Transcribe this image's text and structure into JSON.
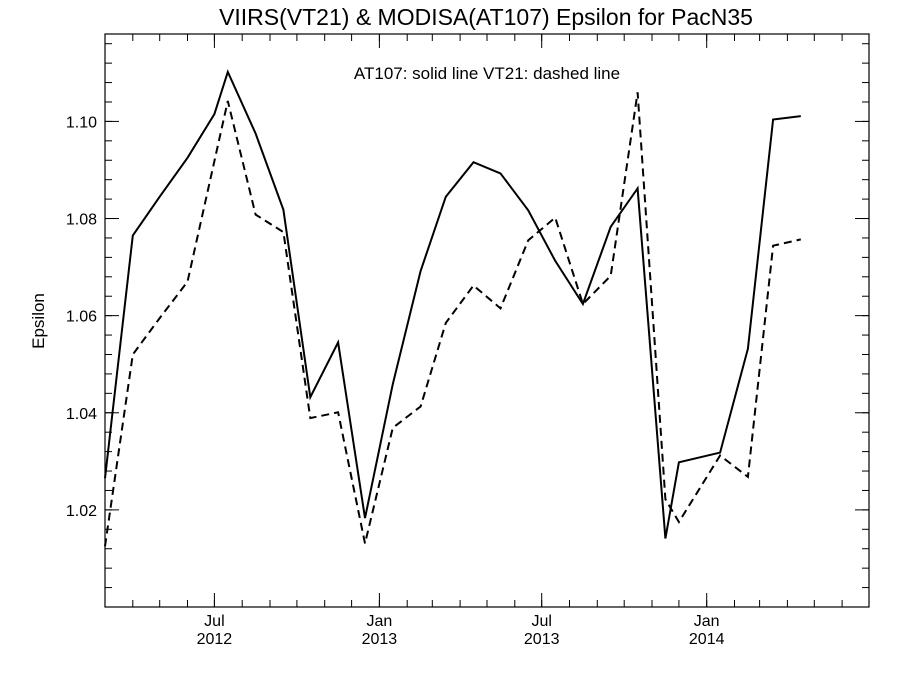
{
  "chart_data": {
    "type": "line",
    "title": "VIIRS(VT21) & MODISA(AT107)  Epsilon for PacN35",
    "annotation": "AT107: solid line   VT21: dashed line",
    "ylabel": "Epsilon",
    "xlabel": "",
    "xlim": [
      "2012-03-01",
      "2014-07-01"
    ],
    "ylim": [
      1.0,
      1.118
    ],
    "y_ticks": [
      "1.02",
      "1.04",
      "1.06",
      "1.08",
      "1.10"
    ],
    "y_tick_values": [
      1.02,
      1.04,
      1.06,
      1.08,
      1.1
    ],
    "y_minor_step": 0.004,
    "x_ticks": [
      {
        "date": "2012-07-01",
        "month": "Jul",
        "year": "2012"
      },
      {
        "date": "2013-01-01",
        "month": "Jan",
        "year": "2013"
      },
      {
        "date": "2013-07-01",
        "month": "Jul",
        "year": "2013"
      },
      {
        "date": "2014-01-01",
        "month": "Jan",
        "year": "2014"
      }
    ],
    "grid": false,
    "series": [
      {
        "name": "AT107",
        "style": "solid",
        "color": "#000000",
        "points": [
          {
            "x": "2012-03-01",
            "y": 1.0265
          },
          {
            "x": "2012-04-01",
            "y": 1.0765
          },
          {
            "x": "2012-05-01",
            "y": 1.0845
          },
          {
            "x": "2012-06-01",
            "y": 1.0925
          },
          {
            "x": "2012-07-01",
            "y": 1.1015
          },
          {
            "x": "2012-07-16",
            "y": 1.1102
          },
          {
            "x": "2012-08-16",
            "y": 1.0975
          },
          {
            "x": "2012-09-16",
            "y": 1.0818
          },
          {
            "x": "2012-10-16",
            "y": 1.0432
          },
          {
            "x": "2012-11-16",
            "y": 1.0545
          },
          {
            "x": "2012-12-16",
            "y": 1.0183
          },
          {
            "x": "2013-01-16",
            "y": 1.0459
          },
          {
            "x": "2013-02-16",
            "y": 1.0692
          },
          {
            "x": "2013-03-16",
            "y": 1.0845
          },
          {
            "x": "2013-04-16",
            "y": 1.0916
          },
          {
            "x": "2013-05-16",
            "y": 1.0893
          },
          {
            "x": "2013-06-16",
            "y": 1.0817
          },
          {
            "x": "2013-07-16",
            "y": 1.0713
          },
          {
            "x": "2013-08-16",
            "y": 1.0624
          },
          {
            "x": "2013-09-16",
            "y": 1.0783
          },
          {
            "x": "2013-10-16",
            "y": 1.0862
          },
          {
            "x": "2013-11-16",
            "y": 1.0141
          },
          {
            "x": "2013-12-01",
            "y": 1.0298
          },
          {
            "x": "2014-01-16",
            "y": 1.0318
          },
          {
            "x": "2014-02-16",
            "y": 1.0532
          },
          {
            "x": "2014-03-16",
            "y": 1.1004
          },
          {
            "x": "2014-04-16",
            "y": 1.1011
          }
        ]
      },
      {
        "name": "VT21",
        "style": "dashed",
        "color": "#000000",
        "points": [
          {
            "x": "2012-03-01",
            "y": 1.0125
          },
          {
            "x": "2012-04-01",
            "y": 1.052
          },
          {
            "x": "2012-05-01",
            "y": 1.0595
          },
          {
            "x": "2012-06-01",
            "y": 1.067
          },
          {
            "x": "2012-07-16",
            "y": 1.1042
          },
          {
            "x": "2012-08-16",
            "y": 1.0808
          },
          {
            "x": "2012-09-16",
            "y": 1.0772
          },
          {
            "x": "2012-10-16",
            "y": 1.0389
          },
          {
            "x": "2012-11-16",
            "y": 1.0401
          },
          {
            "x": "2012-12-16",
            "y": 1.0131
          },
          {
            "x": "2013-01-16",
            "y": 1.0369
          },
          {
            "x": "2013-02-16",
            "y": 1.0413
          },
          {
            "x": "2013-03-16",
            "y": 1.0585
          },
          {
            "x": "2013-04-16",
            "y": 1.0662
          },
          {
            "x": "2013-05-16",
            "y": 1.0615
          },
          {
            "x": "2013-06-16",
            "y": 1.0755
          },
          {
            "x": "2013-07-16",
            "y": 1.0802
          },
          {
            "x": "2013-08-16",
            "y": 1.0624
          },
          {
            "x": "2013-09-16",
            "y": 1.0682
          },
          {
            "x": "2013-10-16",
            "y": 1.106
          },
          {
            "x": "2013-11-16",
            "y": 1.0222
          },
          {
            "x": "2013-12-01",
            "y": 1.0175
          },
          {
            "x": "2014-01-16",
            "y": 1.0312
          },
          {
            "x": "2014-02-16",
            "y": 1.0268
          },
          {
            "x": "2014-03-16",
            "y": 1.0744
          },
          {
            "x": "2014-04-16",
            "y": 1.0757
          }
        ]
      }
    ]
  }
}
